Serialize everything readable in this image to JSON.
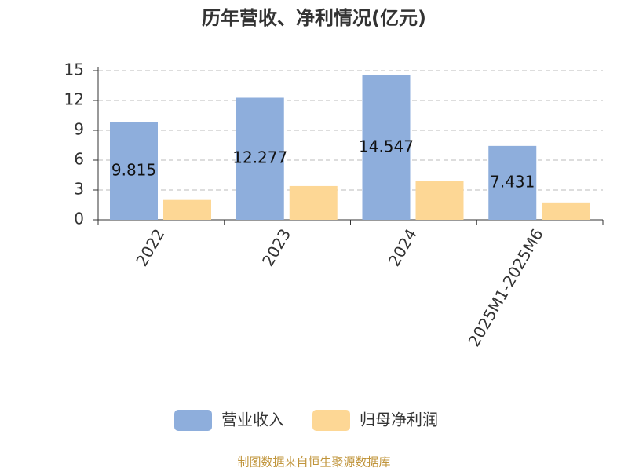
{
  "chart_data": {
    "type": "bar",
    "title": "历年营收、净利情况(亿元)",
    "categories": [
      "2022",
      "2023",
      "2024",
      "2025M1-2025M6"
    ],
    "series": [
      {
        "name": "营业收入",
        "color": "#8eaedc",
        "values": [
          9.815,
          12.277,
          14.547,
          7.431
        ],
        "show_labels": true
      },
      {
        "name": "归母净利润",
        "color": "#fdd795",
        "values": [
          2.0,
          3.4,
          3.9,
          1.75
        ],
        "show_labels": false
      }
    ],
    "ylim": [
      0,
      15
    ],
    "yticks": [
      0,
      3,
      6,
      9,
      12,
      15
    ],
    "grid": true,
    "source": "制图数据来自恒生聚源数据库"
  }
}
